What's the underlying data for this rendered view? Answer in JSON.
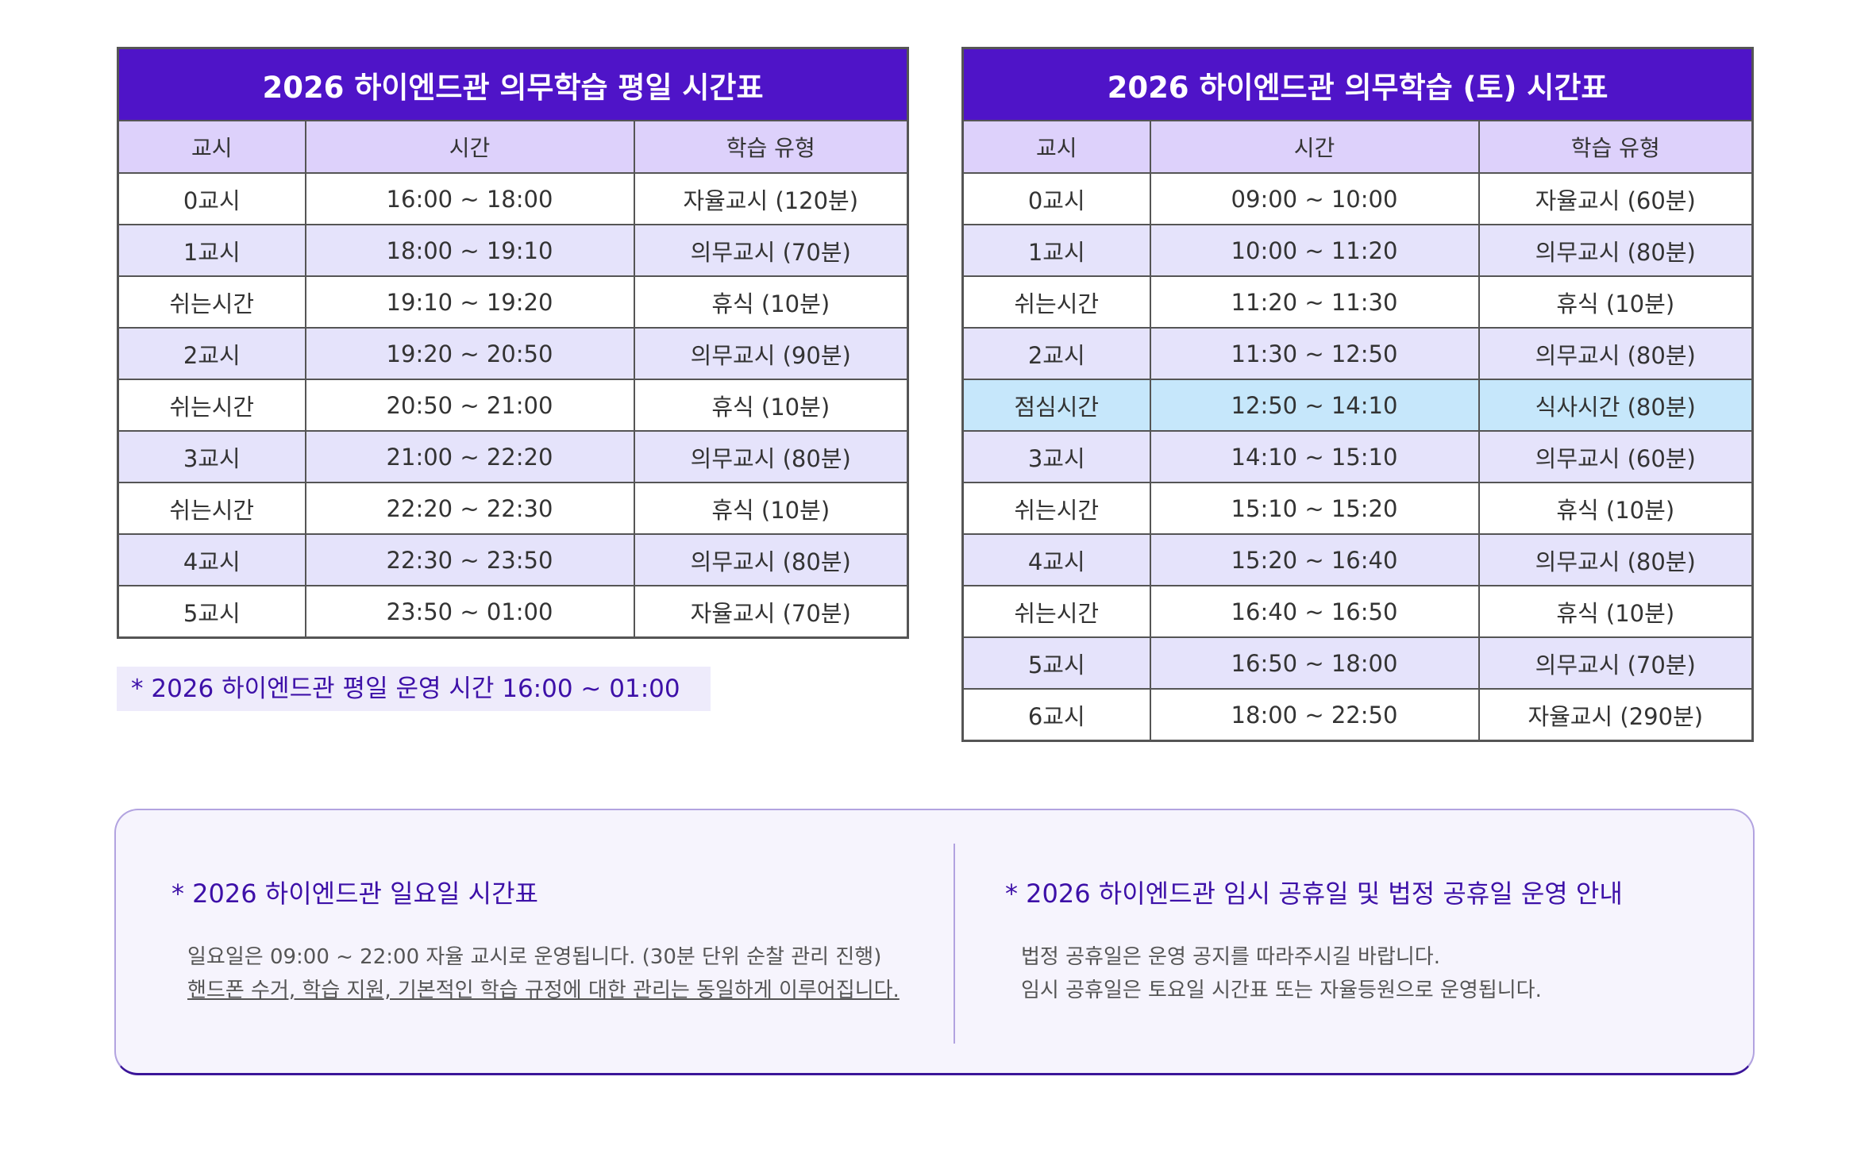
{
  "weekday": {
    "title": "2026 하이엔드관 의무학습 평일 시간표",
    "headers": [
      "교시",
      "시간",
      "학습 유형"
    ],
    "rows": [
      {
        "period": "0교시",
        "time": "16:00 ~ 18:00",
        "type": "자율교시 (120분)"
      },
      {
        "period": "1교시",
        "time": "18:00 ~ 19:10",
        "type": "의무교시 (70분)"
      },
      {
        "period": "쉬는시간",
        "time": "19:10 ~ 19:20",
        "type": "휴식 (10분)"
      },
      {
        "period": "2교시",
        "time": "19:20 ~ 20:50",
        "type": "의무교시 (90분)"
      },
      {
        "period": "쉬는시간",
        "time": "20:50 ~ 21:00",
        "type": "휴식 (10분)"
      },
      {
        "period": "3교시",
        "time": "21:00 ~ 22:20",
        "type": "의무교시 (80분)"
      },
      {
        "period": "쉬는시간",
        "time": "22:20 ~ 22:30",
        "type": "휴식 (10분)"
      },
      {
        "period": "4교시",
        "time": "22:30 ~ 23:50",
        "type": "의무교시 (80분)"
      },
      {
        "period": "5교시",
        "time": "23:50 ~ 01:00",
        "type": "자율교시 (70분)"
      }
    ],
    "note": "* 2026 하이엔드관 평일 운영 시간 16:00 ~ 01:00"
  },
  "saturday": {
    "title": "2026 하이엔드관 의무학습 (토) 시간표",
    "headers": [
      "교시",
      "시간",
      "학습 유형"
    ],
    "rows": [
      {
        "period": "0교시",
        "time": "09:00 ~ 10:00",
        "type": "자율교시 (60분)"
      },
      {
        "period": "1교시",
        "time": "10:00 ~ 11:20",
        "type": "의무교시 (80분)"
      },
      {
        "period": "쉬는시간",
        "time": "11:20 ~ 11:30",
        "type": "휴식 (10분)"
      },
      {
        "period": "2교시",
        "time": "11:30 ~ 12:50",
        "type": "의무교시 (80분)"
      },
      {
        "period": "점심시간",
        "time": "12:50 ~ 14:10",
        "type": "식사시간 (80분)"
      },
      {
        "period": "3교시",
        "time": "14:10 ~ 15:10",
        "type": "의무교시 (60분)"
      },
      {
        "period": "쉬는시간",
        "time": "15:10 ~ 15:20",
        "type": "휴식 (10분)"
      },
      {
        "period": "4교시",
        "time": "15:20 ~ 16:40",
        "type": "의무교시 (80분)"
      },
      {
        "period": "쉬는시간",
        "time": "16:40 ~ 16:50",
        "type": "휴식 (10분)"
      },
      {
        "period": "5교시",
        "time": "16:50 ~ 18:00",
        "type": "의무교시 (70분)"
      },
      {
        "period": "6교시",
        "time": "18:00 ~ 22:50",
        "type": "자율교시 (290분)"
      }
    ]
  },
  "info": {
    "sunday": {
      "title": "* 2026 하이엔드관 일요일 시간표",
      "line1": "일요일은 09:00 ~ 22:00 자율 교시로 운영됩니다. (30분 단위 순찰 관리 진행)",
      "line2": "핸드폰 수거, 학습 지원, 기본적인 학습 규정에 대한 관리는 동일하게 이루어집니다."
    },
    "holiday": {
      "title": "* 2026 하이엔드관 임시 공휴일 및 법정 공휴일 운영 안내",
      "line1": "법정 공휴일은 운영 공지를 따라주시길 바랍니다.",
      "line2": "임시 공휴일은 토요일 시간표 또는 자율등원으로 운영됩니다."
    }
  },
  "colors": {
    "title_bar": "#4f14c8",
    "header_row": "#ddd1fb",
    "alt_row": "#e5e3fb",
    "lunch_row": "#c6e7fb",
    "note_text": "#3d10a8"
  }
}
